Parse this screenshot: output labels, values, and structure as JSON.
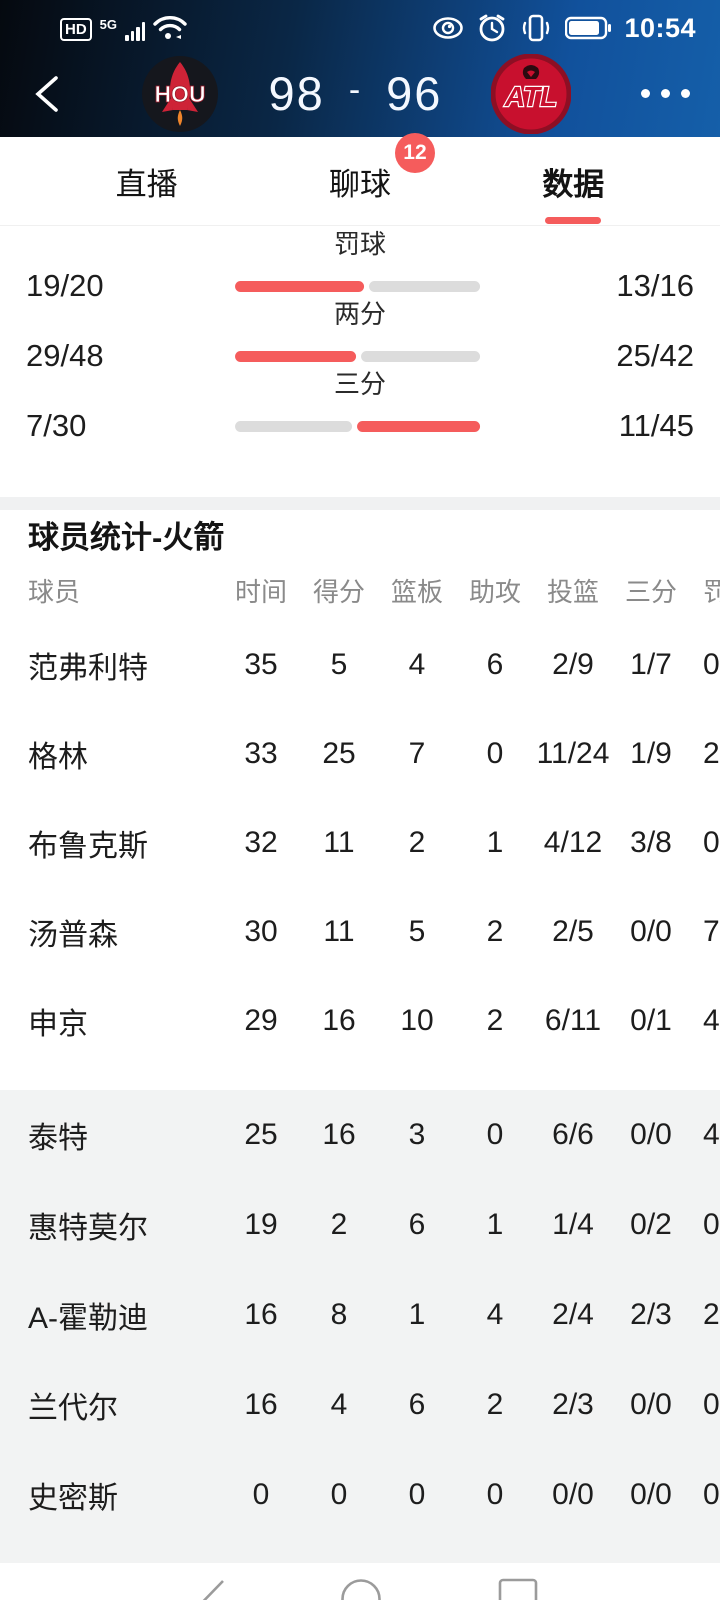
{
  "status_bar": {
    "hd": "HD",
    "network": "5G",
    "time": "10:54",
    "icons_left": [
      "hd-badge",
      "signal-bars",
      "wifi"
    ],
    "icons_right": [
      "eye-protection",
      "alarm",
      "vibrate",
      "battery"
    ]
  },
  "header": {
    "home_team": "HOU",
    "away_team": "ATL",
    "home_score": "98",
    "score_separator": "-",
    "away_score": "96"
  },
  "tabs": [
    {
      "label": "直播",
      "active": false
    },
    {
      "label": "聊球",
      "active": false,
      "badge": "12"
    },
    {
      "label": "数据",
      "active": true
    }
  ],
  "colors": {
    "accent_red": "#f55c5c",
    "bar_gray": "#dcdcdc",
    "badge_red": "#f55c5c"
  },
  "team_stats": {
    "rows": [
      {
        "label": "罚球",
        "left": "19/20",
        "right": "13/16"
      },
      {
        "label": "两分",
        "left": "29/48",
        "right": "25/42"
      },
      {
        "label": "三分",
        "left": "7/30",
        "right": "11/45"
      }
    ]
  },
  "player_stats": {
    "title": "球员统计-火箭",
    "columns": [
      "球员",
      "时间",
      "得分",
      "篮板",
      "助攻",
      "投篮",
      "三分",
      "罚篮"
    ],
    "starters": [
      {
        "name": "范弗利特",
        "values": [
          "35",
          "5",
          "4",
          "6",
          "2/9",
          "1/7",
          "0"
        ]
      },
      {
        "name": "格林",
        "values": [
          "33",
          "25",
          "7",
          "0",
          "11/24",
          "1/9",
          "2"
        ]
      },
      {
        "name": "布鲁克斯",
        "values": [
          "32",
          "11",
          "2",
          "1",
          "4/12",
          "3/8",
          "0"
        ]
      },
      {
        "name": "汤普森",
        "values": [
          "30",
          "11",
          "5",
          "2",
          "2/5",
          "0/0",
          "7"
        ]
      },
      {
        "name": "申京",
        "values": [
          "29",
          "16",
          "10",
          "2",
          "6/11",
          "0/1",
          "4"
        ]
      }
    ],
    "bench": [
      {
        "name": "泰特",
        "values": [
          "25",
          "16",
          "3",
          "0",
          "6/6",
          "0/0",
          "4"
        ]
      },
      {
        "name": "惠特莫尔",
        "values": [
          "19",
          "2",
          "6",
          "1",
          "1/4",
          "0/2",
          "0"
        ]
      },
      {
        "name": "A-霍勒迪",
        "values": [
          "16",
          "8",
          "1",
          "4",
          "2/4",
          "2/3",
          "2"
        ]
      },
      {
        "name": "兰代尔",
        "values": [
          "16",
          "4",
          "6",
          "2",
          "2/3",
          "0/0",
          "0"
        ]
      },
      {
        "name": "史密斯",
        "values": [
          "0",
          "0",
          "0",
          "0",
          "0/0",
          "0/0",
          "0"
        ]
      }
    ]
  },
  "nav_bar": {
    "icons": [
      "back-triangle",
      "home-circle",
      "recents-square"
    ]
  }
}
